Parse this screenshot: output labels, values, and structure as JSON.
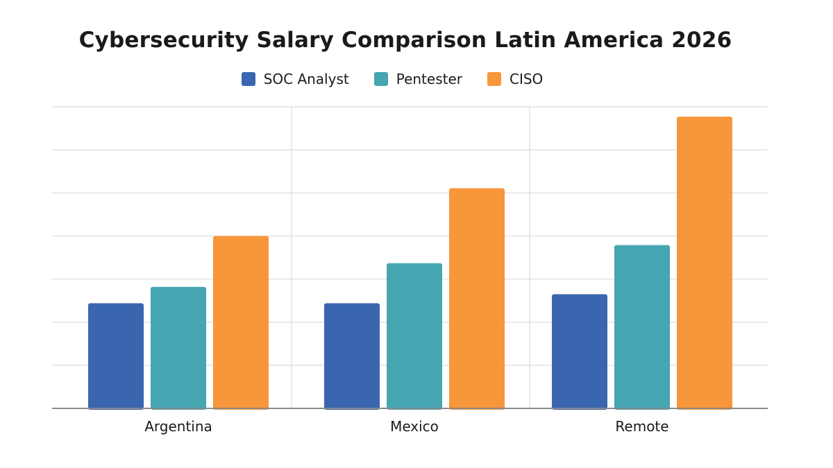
{
  "chart_data": {
    "type": "bar",
    "title": "Cybersecurity Salary Comparison Latin America 2026",
    "xlabel": "",
    "ylabel": "",
    "categories": [
      "Argentina",
      "Mexico",
      "Remote"
    ],
    "series": [
      {
        "name": "SOC Analyst",
        "color": "#3a66b0",
        "values": [
          2.44,
          2.44,
          2.65
        ]
      },
      {
        "name": "Pentester",
        "color": "#45a6b2",
        "values": [
          2.82,
          3.37,
          3.79
        ]
      },
      {
        "name": "CISO",
        "color": "#f7963b",
        "values": [
          4.0,
          5.11,
          6.77
        ]
      }
    ],
    "ylim": [
      0,
      7
    ],
    "y_tick_labels_shown": false,
    "grid": true,
    "legend_position": "top-center"
  }
}
